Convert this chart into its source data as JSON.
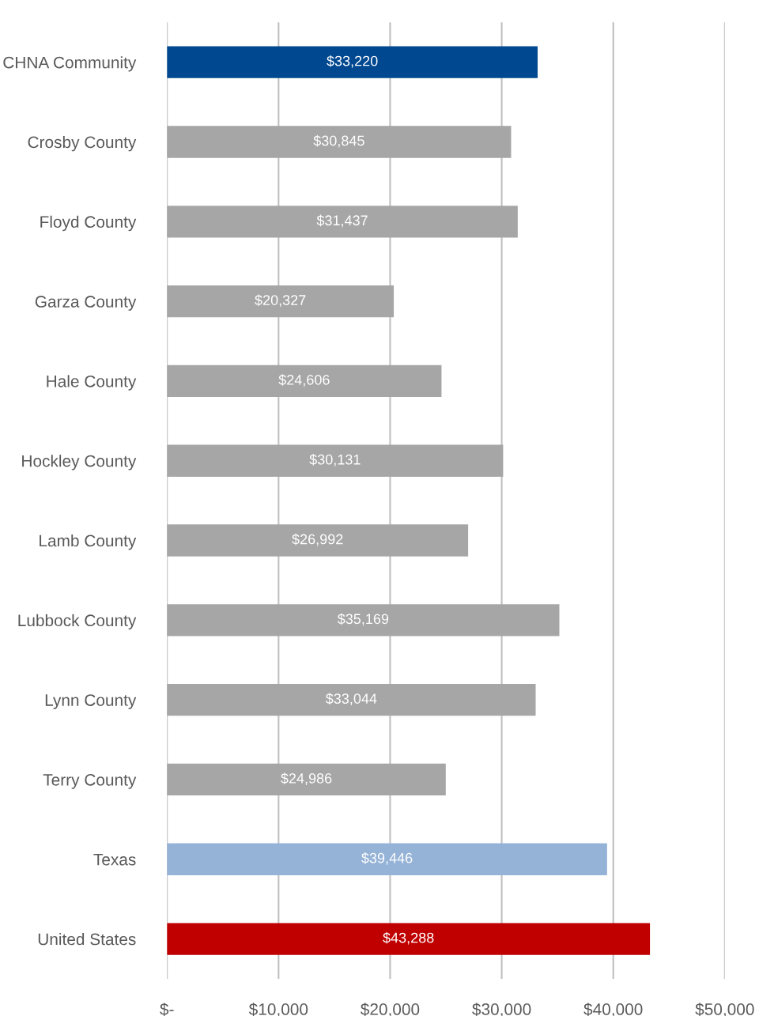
{
  "chart_data": {
    "type": "bar",
    "orientation": "horizontal",
    "categories": [
      "CHNA Community",
      "Crosby County",
      "Floyd County",
      "Garza County",
      "Hale County",
      "Hockley County",
      "Lamb County",
      "Lubbock County",
      "Lynn County",
      "Terry County",
      "Texas",
      "United States"
    ],
    "values": [
      33220,
      30845,
      31437,
      20327,
      24606,
      30131,
      26992,
      35169,
      33044,
      24986,
      39446,
      43288
    ],
    "value_labels": [
      "$33,220",
      "$30,845",
      "$31,437",
      "$20,327",
      "$24,606",
      "$30,131",
      "$26,992",
      "$35,169",
      "$33,044",
      "$24,986",
      "$39,446",
      "$43,288"
    ],
    "colors": [
      "#004890",
      "#a6a6a6",
      "#a6a6a6",
      "#a6a6a6",
      "#a6a6a6",
      "#a6a6a6",
      "#a6a6a6",
      "#a6a6a6",
      "#a6a6a6",
      "#a6a6a6",
      "#95b3d7",
      "#c00000"
    ],
    "xlim": [
      0,
      50000
    ],
    "xticks": [
      {
        "value": 0,
        "label": "$-"
      },
      {
        "value": 10000,
        "label": "$10,000"
      },
      {
        "value": 20000,
        "label": "$20,000"
      },
      {
        "value": 30000,
        "label": "$30,000"
      },
      {
        "value": 40000,
        "label": "$40,000"
      },
      {
        "value": 50000,
        "label": "$50,000"
      }
    ],
    "grid": "x"
  }
}
